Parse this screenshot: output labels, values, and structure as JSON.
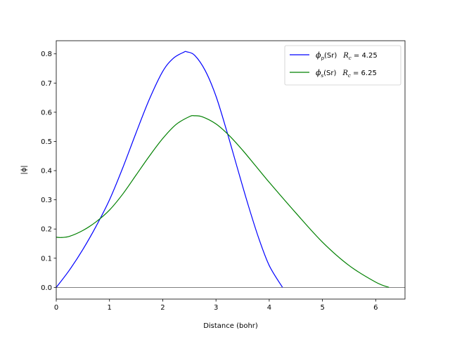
{
  "chart_data": {
    "type": "line",
    "title": "",
    "xlabel": "Distance (bohr)",
    "ylabel": "|ϕ|",
    "xlim": [
      0,
      6.55
    ],
    "ylim": [
      -0.04,
      0.845
    ],
    "xticks": [
      0,
      1,
      2,
      3,
      4,
      5,
      6
    ],
    "yticks": [
      0.0,
      0.1,
      0.2,
      0.3,
      0.4,
      0.5,
      0.6,
      0.7,
      0.8
    ],
    "xtick_labels": [
      "0",
      "1",
      "2",
      "3",
      "4",
      "5",
      "6"
    ],
    "ytick_labels": [
      "0.0",
      "0.1",
      "0.2",
      "0.3",
      "0.4",
      "0.5",
      "0.6",
      "0.7",
      "0.8"
    ],
    "grid": false,
    "legend_position": "top-right",
    "zero_line": true,
    "series": [
      {
        "name": "phi_p",
        "legend": {
          "sym": "ϕ",
          "sub": "p",
          "elem": "(Sr)",
          "rc_sym": "R",
          "rc_sub": "c",
          "rc_val": " = 4.25"
        },
        "color": "#0000ff",
        "x": [
          0,
          0.25,
          0.5,
          0.75,
          1.0,
          1.25,
          1.5,
          1.75,
          2.0,
          2.2,
          2.4,
          2.45,
          2.6,
          2.8,
          3.0,
          3.2,
          3.4,
          3.6,
          3.8,
          4.0,
          4.25
        ],
        "y": [
          0.0,
          0.06,
          0.13,
          0.21,
          0.3,
          0.41,
          0.53,
          0.645,
          0.74,
          0.785,
          0.806,
          0.807,
          0.795,
          0.742,
          0.655,
          0.537,
          0.41,
          0.285,
          0.17,
          0.075,
          0.0
        ]
      },
      {
        "name": "phi_s",
        "legend": {
          "sym": "ϕ",
          "sub": "s",
          "elem": "(Sr)",
          "rc_sym": "R",
          "rc_sub": "c",
          "rc_val": " = 6.25"
        },
        "color": "#008000",
        "x": [
          0,
          0.1,
          0.25,
          0.5,
          0.75,
          1.0,
          1.25,
          1.5,
          1.75,
          2.0,
          2.25,
          2.5,
          2.6,
          2.75,
          3.0,
          3.25,
          3.5,
          3.75,
          4.0,
          4.5,
          5.0,
          5.5,
          6.0,
          6.25
        ],
        "y": [
          0.172,
          0.171,
          0.175,
          0.195,
          0.225,
          0.265,
          0.32,
          0.385,
          0.45,
          0.51,
          0.558,
          0.585,
          0.588,
          0.584,
          0.56,
          0.52,
          0.47,
          0.415,
          0.36,
          0.255,
          0.155,
          0.075,
          0.018,
          0.0
        ]
      }
    ]
  }
}
